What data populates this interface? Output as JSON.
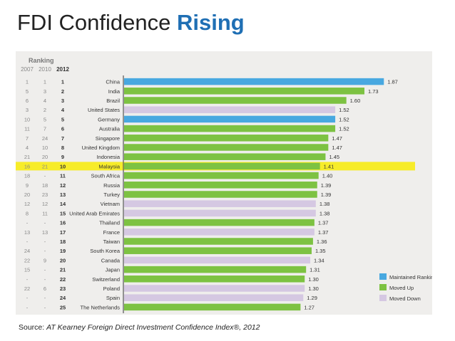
{
  "slide": {
    "title_prefix": "FDI Confidence ",
    "title_highlight": "Rising",
    "source_prefix": "Source: ",
    "source_text": "AT Kearney Foreign Direct Investment Confidence Index®, 2012"
  },
  "colors": {
    "maintained": "#48a8e0",
    "moved_up": "#7dc242",
    "moved_down": "#d5c8e2",
    "highlight": "#f7ec2a",
    "title_accent": "#1f6fb4"
  },
  "chart_data": {
    "type": "bar",
    "orientation": "horizontal",
    "ranking_header": "Ranking",
    "year_headers": [
      "2007",
      "2010",
      "2012"
    ],
    "xlim": [
      0,
      1.92
    ],
    "rows": [
      {
        "r2007": "1",
        "r2010": "1",
        "r2012": "1",
        "country": "China",
        "value": 1.87,
        "value_label": "1.87",
        "status": "maintained"
      },
      {
        "r2007": "5",
        "r2010": "3",
        "r2012": "2",
        "country": "India",
        "value": 1.73,
        "value_label": "1.73",
        "status": "moved_up"
      },
      {
        "r2007": "6",
        "r2010": "4",
        "r2012": "3",
        "country": "Brazil",
        "value": 1.6,
        "value_label": "1.60",
        "status": "moved_up"
      },
      {
        "r2007": "3",
        "r2010": "2",
        "r2012": "4",
        "country": "United States",
        "value": 1.52,
        "value_label": "1.52",
        "status": "moved_down"
      },
      {
        "r2007": "10",
        "r2010": "5",
        "r2012": "5",
        "country": "Germany",
        "value": 1.52,
        "value_label": "1.52",
        "status": "maintained"
      },
      {
        "r2007": "11",
        "r2010": "7",
        "r2012": "6",
        "country": "Australia",
        "value": 1.52,
        "value_label": "1.52",
        "status": "moved_up"
      },
      {
        "r2007": "7",
        "r2010": "24",
        "r2012": "7",
        "country": "Singapore",
        "value": 1.47,
        "value_label": "1.47",
        "status": "moved_up"
      },
      {
        "r2007": "4",
        "r2010": "10",
        "r2012": "8",
        "country": "United Kingdom",
        "value": 1.47,
        "value_label": "1.47",
        "status": "moved_up"
      },
      {
        "r2007": "21",
        "r2010": "20",
        "r2012": "9",
        "country": "Indonesia",
        "value": 1.45,
        "value_label": "1.45",
        "status": "moved_up"
      },
      {
        "r2007": "16",
        "r2010": "21",
        "r2012": "10",
        "country": "Malaysia",
        "value": 1.41,
        "value_label": "1.41",
        "status": "moved_up",
        "highlight": true
      },
      {
        "r2007": "18",
        "r2010": "-",
        "r2012": "11",
        "country": "South Africa",
        "value": 1.4,
        "value_label": "1.40",
        "status": "moved_up"
      },
      {
        "r2007": "9",
        "r2010": "18",
        "r2012": "12",
        "country": "Russia",
        "value": 1.39,
        "value_label": "1.39",
        "status": "moved_up"
      },
      {
        "r2007": "20",
        "r2010": "23",
        "r2012": "13",
        "country": "Turkey",
        "value": 1.39,
        "value_label": "1.39",
        "status": "moved_up"
      },
      {
        "r2007": "12",
        "r2010": "12",
        "r2012": "14",
        "country": "Vietnam",
        "value": 1.38,
        "value_label": "1.38",
        "status": "moved_down"
      },
      {
        "r2007": "8",
        "r2010": "11",
        "r2012": "15",
        "country": "United Arab Emirates",
        "value": 1.38,
        "value_label": "1.38",
        "status": "moved_down"
      },
      {
        "r2007": "-",
        "r2010": "-",
        "r2012": "16",
        "country": "Thailand",
        "value": 1.37,
        "value_label": "1.37",
        "status": "moved_up"
      },
      {
        "r2007": "13",
        "r2010": "13",
        "r2012": "17",
        "country": "France",
        "value": 1.37,
        "value_label": "1.37",
        "status": "moved_down"
      },
      {
        "r2007": "-",
        "r2010": "-",
        "r2012": "18",
        "country": "Taiwan",
        "value": 1.36,
        "value_label": "1.36",
        "status": "moved_up"
      },
      {
        "r2007": "24",
        "r2010": "-",
        "r2012": "19",
        "country": "South Korea",
        "value": 1.35,
        "value_label": "1.35",
        "status": "moved_up"
      },
      {
        "r2007": "22",
        "r2010": "9",
        "r2012": "20",
        "country": "Canada",
        "value": 1.34,
        "value_label": "1.34",
        "status": "moved_down"
      },
      {
        "r2007": "15",
        "r2010": "-",
        "r2012": "21",
        "country": "Japan",
        "value": 1.31,
        "value_label": "1.31",
        "status": "moved_up"
      },
      {
        "r2007": "-",
        "r2010": "-",
        "r2012": "22",
        "country": "Switzerland",
        "value": 1.3,
        "value_label": "1.30",
        "status": "moved_up"
      },
      {
        "r2007": "22",
        "r2010": "6",
        "r2012": "23",
        "country": "Poland",
        "value": 1.3,
        "value_label": "1.30",
        "status": "moved_down"
      },
      {
        "r2007": "-",
        "r2010": "-",
        "r2012": "24",
        "country": "Spain",
        "value": 1.29,
        "value_label": "1.29",
        "status": "moved_down"
      },
      {
        "r2007": "-",
        "r2010": "-",
        "r2012": "25",
        "country": "The Netherlands",
        "value": 1.27,
        "value_label": "1.27",
        "status": "moved_up"
      }
    ],
    "legend": [
      {
        "key": "maintained",
        "label": "Maintained Ranking"
      },
      {
        "key": "moved_up",
        "label": "Moved Up"
      },
      {
        "key": "moved_down",
        "label": "Moved Down"
      }
    ]
  }
}
